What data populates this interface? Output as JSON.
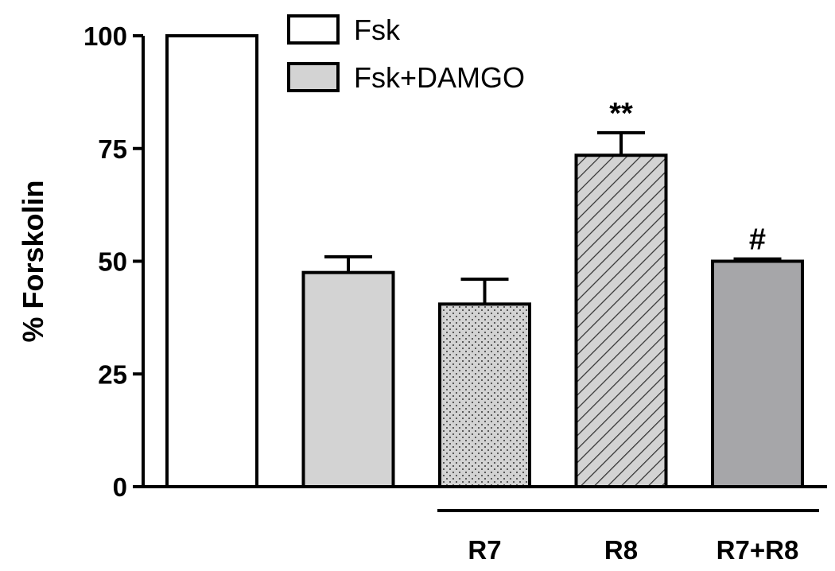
{
  "chart_data": {
    "type": "bar",
    "ylabel": "% Forskolin",
    "ylim": [
      0,
      100
    ],
    "yticks": [
      0,
      25,
      50,
      75,
      100
    ],
    "legend": [
      {
        "label": "Fsk",
        "fill": "#ffffff",
        "pattern": "solid"
      },
      {
        "label": "Fsk+DAMGO",
        "fill": "#d3d3d3",
        "pattern": "solid"
      }
    ],
    "bars": [
      {
        "value": 100,
        "error": 0,
        "fill": "#ffffff",
        "pattern": "solid",
        "annotation": ""
      },
      {
        "value": 47.5,
        "error": 3.5,
        "fill": "#d3d3d3",
        "pattern": "solid",
        "annotation": ""
      },
      {
        "value": 40.5,
        "error": 5.5,
        "fill": "#d3d3d3",
        "pattern": "dots",
        "annotation": ""
      },
      {
        "value": 73.5,
        "error": 5,
        "fill": "#d3d3d3",
        "pattern": "hatch",
        "annotation": "**"
      },
      {
        "value": 50,
        "error": 0.5,
        "fill": "#a6a6a9",
        "pattern": "solid",
        "annotation": "#"
      }
    ],
    "group_labels": [
      "R7",
      "R8",
      "R7+R8"
    ]
  }
}
